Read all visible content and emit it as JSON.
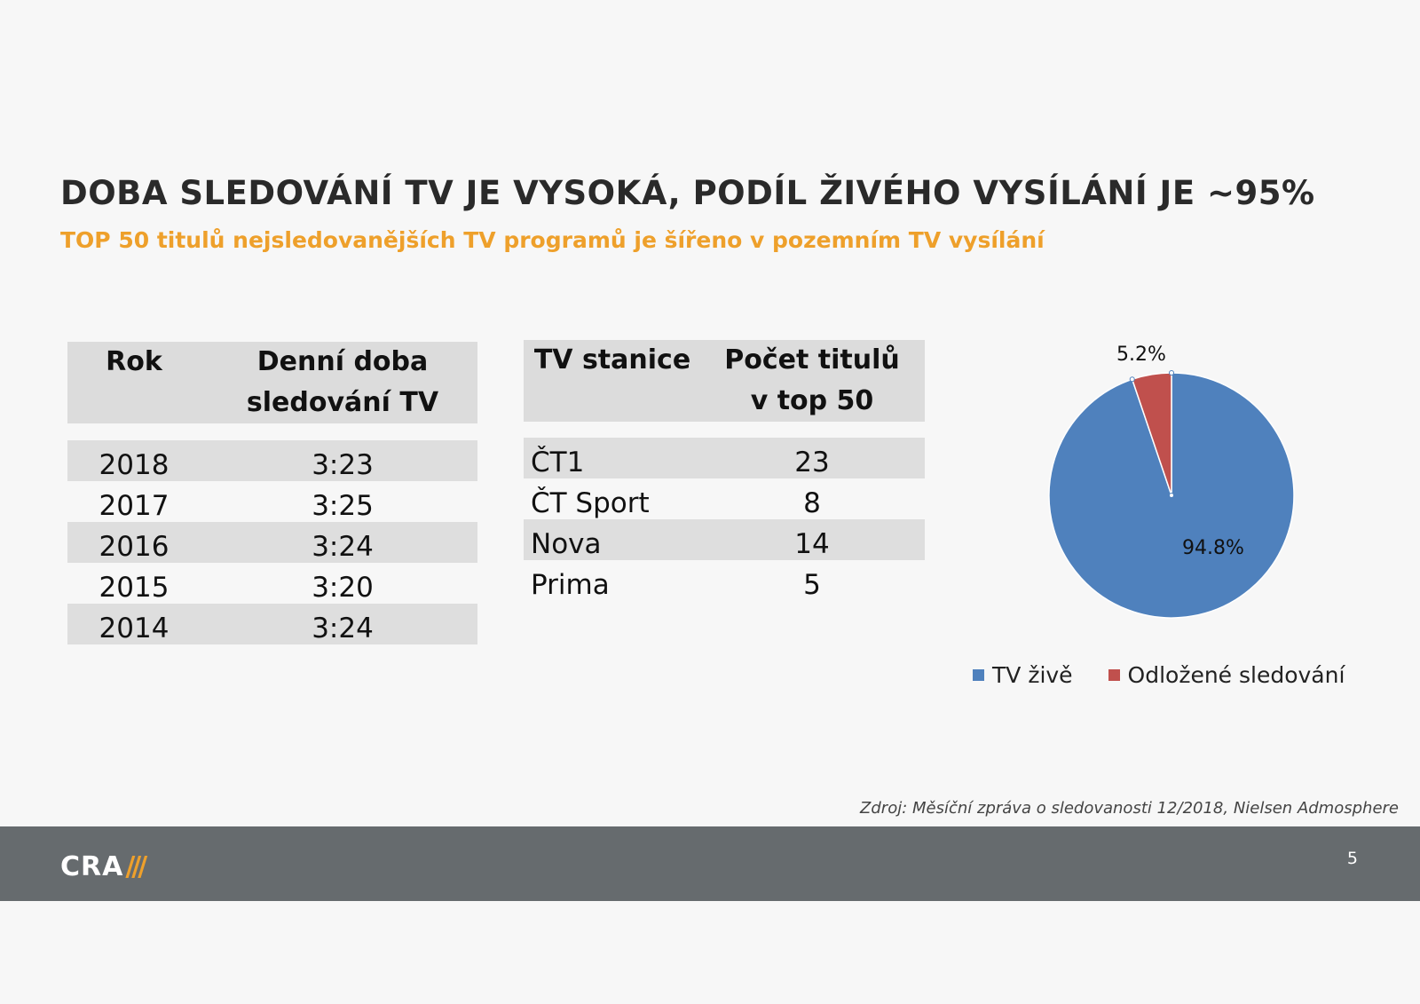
{
  "title": "DOBA SLEDOVÁNÍ TV JE VYSOKÁ, PODÍL ŽIVÉHO VYSÍLÁNÍ JE ~95%",
  "subtitle": "TOP 50 titulů nejsledovanějších TV programů je šířeno v pozemním TV vysílání",
  "table_viewing": {
    "header_year": "Rok",
    "header_time_line1": "Denní doba",
    "header_time_line2": "sledování TV",
    "rows": [
      {
        "year": "2018",
        "time": "3:23"
      },
      {
        "year": "2017",
        "time": "3:25"
      },
      {
        "year": "2016",
        "time": "3:24"
      },
      {
        "year": "2015",
        "time": "3:20"
      },
      {
        "year": "2014",
        "time": "3:24"
      }
    ]
  },
  "table_stations": {
    "header_station": "TV stanice",
    "header_count_line1": "Počet titulů",
    "header_count_line2": "v top 50",
    "rows": [
      {
        "station": "ČT1",
        "count": "23"
      },
      {
        "station": "ČT Sport",
        "count": "8"
      },
      {
        "station": "Nova",
        "count": "14"
      },
      {
        "station": "Prima",
        "count": "5"
      }
    ]
  },
  "chart_data": {
    "type": "pie",
    "series": [
      {
        "name": "TV živě",
        "value": 94.8,
        "label": "94.8%",
        "color": "#4f81bd"
      },
      {
        "name": "Odložené sledování",
        "value": 5.2,
        "label": "5.2%",
        "color": "#c0504d"
      }
    ],
    "legend_position": "bottom"
  },
  "source": "Zdroj: Měsíční zpráva o sledovanosti 12/2018, Nielsen Admosphere",
  "footer": {
    "logo_text": "CRA",
    "page_number": "5"
  }
}
